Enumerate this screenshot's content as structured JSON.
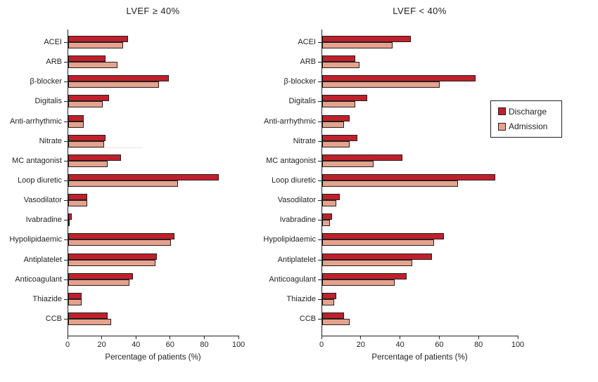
{
  "figure": {
    "background": "#ffffff",
    "text_color": "#231f20",
    "axis_color": "#231f20",
    "bar_border_color": "#231f20"
  },
  "legend": {
    "position": "right",
    "entries": [
      {
        "label": "Discharge",
        "color": "#c0202c"
      },
      {
        "label": "Admission",
        "color": "#e5a38e"
      }
    ]
  },
  "chart_data": [
    {
      "type": "bar",
      "orientation": "horizontal",
      "title": "LVEF ≥ 40%",
      "xlabel": "Percentage of patients (%)",
      "xlim": [
        0,
        100
      ],
      "xticks": [
        0,
        20,
        40,
        60,
        80,
        100
      ],
      "grid": false,
      "categories": [
        "ACEI",
        "ARB",
        "β-blocker",
        "Digitalis",
        "Anti-arrhythmic",
        "Nitrate",
        "MC antagonist",
        "Loop diuretic",
        "Vasodilator",
        "Ivabradine",
        "Hypolipidaemic",
        "Antiplatelet",
        "Anticoagulant",
        "Thiazide",
        "CCB"
      ],
      "series": [
        {
          "name": "Discharge",
          "color": "#c0202c",
          "values": [
            35,
            22,
            59,
            24,
            9,
            22,
            31,
            88,
            11,
            2,
            62,
            52,
            38,
            8,
            23
          ]
        },
        {
          "name": "Admission",
          "color": "#e5a38e",
          "values": [
            32,
            29,
            53,
            20,
            9,
            21,
            23,
            64,
            11,
            1,
            60,
            51,
            36,
            8,
            25
          ]
        }
      ],
      "artifact": {
        "category_index": 5,
        "width_pct": 43.5,
        "color": "#f7ded5"
      }
    },
    {
      "type": "bar",
      "orientation": "horizontal",
      "title": "LVEF < 40%",
      "xlabel": "Percentage of patients (%)",
      "xlim": [
        0,
        100
      ],
      "xticks": [
        0,
        20,
        40,
        60,
        80,
        100
      ],
      "grid": false,
      "categories": [
        "ACEI",
        "ARB",
        "β-blocker",
        "Digitalis",
        "Anti-arrhythmic",
        "Nitrate",
        "MC antagonist",
        "Loop diuretic",
        "Vasodilator",
        "Ivabradine",
        "Hypolipidaemic",
        "Antiplatelet",
        "Anticoagulant",
        "Thiazide",
        "CCB"
      ],
      "series": [
        {
          "name": "Discharge",
          "color": "#c0202c",
          "values": [
            45,
            17,
            78,
            23,
            14,
            18,
            41,
            88,
            9,
            5,
            62,
            56,
            43,
            7,
            11
          ]
        },
        {
          "name": "Admission",
          "color": "#e5a38e",
          "values": [
            36,
            19,
            60,
            17,
            11,
            14,
            26,
            69,
            7,
            4,
            57,
            46,
            37,
            6,
            14
          ]
        }
      ]
    }
  ]
}
